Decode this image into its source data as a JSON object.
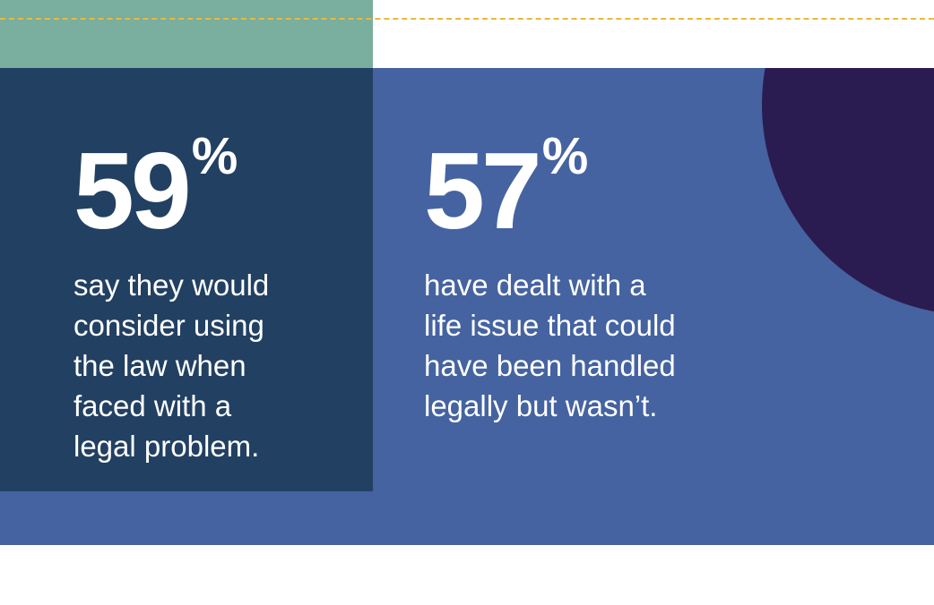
{
  "stats": [
    {
      "number": "59",
      "symbol": "%",
      "text": "say they would\nconsider using\nthe law when\nfaced with a\nlegal problem."
    },
    {
      "number": "57",
      "symbol": "%",
      "text": "have dealt with a\nlife issue that could\nhave been handled\nlegally but wasn’t."
    }
  ],
  "colors": {
    "green": "#7AAE9E",
    "dashed_line": "#E9B93C",
    "blue": "#4563A0",
    "navy": "#224062",
    "pink": "#AE4F7F",
    "purple": "#2A1C51",
    "text": "#FFFFFF"
  }
}
